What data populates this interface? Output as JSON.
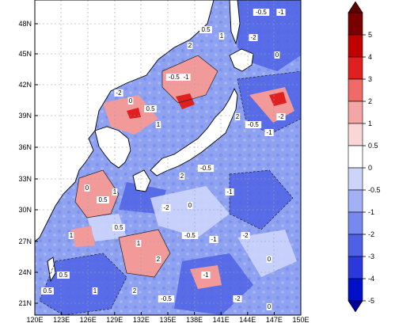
{
  "map": {
    "type": "filled-contour",
    "lat_labels": [
      "48N",
      "45N",
      "42N",
      "39N",
      "36N",
      "33N",
      "30N",
      "27N",
      "24N",
      "21N"
    ],
    "lon_labels": [
      "120E",
      "123E",
      "126E",
      "129E",
      "132E",
      "135E",
      "138E",
      "141E",
      "144E",
      "147E",
      "150E"
    ],
    "contour_labels": [
      "-0.5",
      "-1",
      "-2",
      "0",
      "0.5",
      "1",
      "2"
    ]
  },
  "colorbar": {
    "levels": [
      "5",
      "4",
      "3",
      "2",
      "1",
      "0.5",
      "0",
      "-0.5",
      "-1",
      "-2",
      "-3",
      "-4",
      "-5"
    ],
    "colors": [
      "#7a0000",
      "#c00000",
      "#e02020",
      "#f06a6a",
      "#f4a6a6",
      "#fbd6d6",
      "#ffffff",
      "#ccd4fa",
      "#a2b0f4",
      "#7788ee",
      "#5060e6",
      "#2a38dc",
      "#0010c8"
    ],
    "top_arrow_color": "#5a0000",
    "bottom_arrow_color": "#0000a0"
  },
  "colors": {
    "ocean_base": "#93a6f2",
    "land": "#ffffff",
    "positive": "#f29a9a",
    "negative": "#4f63e6"
  }
}
